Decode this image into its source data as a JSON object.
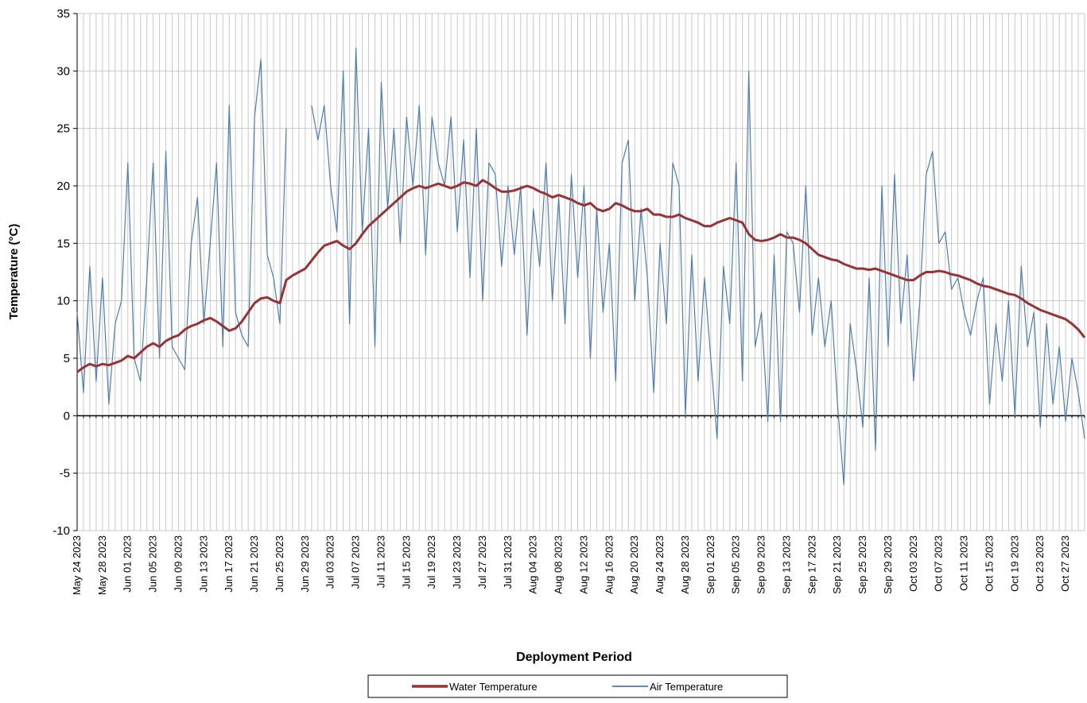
{
  "chart_data": {
    "type": "line",
    "y_label": "Temperature (°C)",
    "x_label": "Deployment Period",
    "categories": [
      "May 24 2023",
      null,
      null,
      null,
      "May 28 2023",
      null,
      null,
      null,
      "Jun 01 2023",
      null,
      null,
      null,
      "Jun 05 2023",
      null,
      null,
      null,
      "Jun 09 2023",
      null,
      null,
      null,
      "Jun 13 2023",
      null,
      null,
      null,
      "Jun 17 2023",
      null,
      null,
      null,
      "Jun 21 2023",
      null,
      null,
      null,
      "Jun 25 2023",
      null,
      null,
      null,
      "Jun 29 2023",
      null,
      null,
      null,
      "Jul 03 2023",
      null,
      null,
      null,
      "Jul 07 2023",
      null,
      null,
      null,
      "Jul 11 2023",
      null,
      null,
      null,
      "Jul 15 2023",
      null,
      null,
      null,
      "Jul 19 2023",
      null,
      null,
      null,
      "Jul 23 2023",
      null,
      null,
      null,
      "Jul 27 2023",
      null,
      null,
      null,
      "Jul 31 2023",
      null,
      null,
      null,
      "Aug 04 2023",
      null,
      null,
      null,
      "Aug 08 2023",
      null,
      null,
      null,
      "Aug 12 2023",
      null,
      null,
      null,
      "Aug 16 2023",
      null,
      null,
      null,
      "Aug 20 2023",
      null,
      null,
      null,
      "Aug 24 2023",
      null,
      null,
      null,
      "Aug 28 2023",
      null,
      null,
      null,
      "Sep 01 2023",
      null,
      null,
      null,
      "Sep 05 2023",
      null,
      null,
      null,
      "Sep 09 2023",
      null,
      null,
      null,
      "Sep 13 2023",
      null,
      null,
      null,
      "Sep 17 2023",
      null,
      null,
      null,
      "Sep 21 2023",
      null,
      null,
      null,
      "Sep 25 2023",
      null,
      null,
      null,
      "Sep 29 2023",
      null,
      null,
      null,
      "Oct 03 2023",
      null,
      null,
      null,
      "Oct 07 2023",
      null,
      null,
      null,
      "Oct 11 2023",
      null,
      null,
      null,
      "Oct 15 2023",
      null,
      null,
      null,
      "Oct 19 2023",
      null,
      null,
      null,
      "Oct 23 2023",
      null,
      null,
      null,
      "Oct 27 2023",
      null,
      null,
      null
    ],
    "series": [
      {
        "name": "Water Temperature",
        "color": "#993333",
        "width": 3,
        "values": [
          3.8,
          4.2,
          4.5,
          4.3,
          4.5,
          4.4,
          4.6,
          4.8,
          5.2,
          5.0,
          5.5,
          6.0,
          6.3,
          6.0,
          6.5,
          6.8,
          7.0,
          7.5,
          7.8,
          8.0,
          8.3,
          8.5,
          8.2,
          7.8,
          7.4,
          7.6,
          8.2,
          9.0,
          9.8,
          10.2,
          10.3,
          10.0,
          9.8,
          11.8,
          12.2,
          12.5,
          12.8,
          13.5,
          14.2,
          14.8,
          15.0,
          15.2,
          14.8,
          14.5,
          15.0,
          15.8,
          16.5,
          17.0,
          17.5,
          18.0,
          18.5,
          19.0,
          19.5,
          19.8,
          20.0,
          19.8,
          20.0,
          20.2,
          20.0,
          19.8,
          20.0,
          20.3,
          20.2,
          20.0,
          20.5,
          20.2,
          19.8,
          19.5,
          19.5,
          19.6,
          19.8,
          20.0,
          19.8,
          19.5,
          19.3,
          19.0,
          19.2,
          19.0,
          18.8,
          18.5,
          18.3,
          18.5,
          18.0,
          17.8,
          18.0,
          18.5,
          18.3,
          18.0,
          17.8,
          17.8,
          18.0,
          17.5,
          17.5,
          17.3,
          17.3,
          17.5,
          17.2,
          17.0,
          16.8,
          16.5,
          16.5,
          16.8,
          17.0,
          17.2,
          17.0,
          16.8,
          15.8,
          15.3,
          15.2,
          15.3,
          15.5,
          15.8,
          15.5,
          15.5,
          15.3,
          15.0,
          14.5,
          14.0,
          13.8,
          13.6,
          13.5,
          13.2,
          13.0,
          12.8,
          12.8,
          12.7,
          12.8,
          12.6,
          12.4,
          12.2,
          12.0,
          11.8,
          11.8,
          12.2,
          12.5,
          12.5,
          12.6,
          12.5,
          12.3,
          12.2,
          12.0,
          11.8,
          11.5,
          11.3,
          11.2,
          11.0,
          10.8,
          10.6,
          10.5,
          10.2,
          9.8,
          9.5,
          9.2,
          9.0,
          8.8,
          8.6,
          8.4,
          8.0,
          7.5,
          6.8
        ]
      },
      {
        "name": "Air Temperature",
        "color": "#4a7ebb",
        "width": 1.2,
        "values": [
          9,
          2,
          13,
          3,
          12,
          1,
          8,
          10,
          22,
          5,
          3,
          12,
          22,
          5,
          23,
          6,
          5,
          4,
          15,
          19,
          8,
          15,
          22,
          6,
          27,
          9,
          7,
          6,
          26,
          31,
          14,
          12,
          8,
          25,
          null,
          null,
          null,
          27,
          24,
          27,
          20,
          16,
          30,
          8,
          32,
          16,
          25,
          6,
          29,
          18,
          25,
          15,
          26,
          20,
          27,
          14,
          26,
          22,
          20,
          26,
          16,
          24,
          12,
          25,
          10,
          22,
          21,
          13,
          20,
          14,
          20,
          7,
          18,
          13,
          22,
          10,
          19,
          8,
          21,
          12,
          20,
          5,
          18,
          9,
          15,
          3,
          22,
          24,
          10,
          18,
          12,
          2,
          15,
          8,
          22,
          20,
          0,
          14,
          3,
          12,
          5,
          -2,
          13,
          8,
          22,
          3,
          30,
          6,
          9,
          -0.5,
          14,
          -0.5,
          16,
          15,
          9,
          20,
          7,
          12,
          6,
          10,
          1,
          -6,
          8,
          4,
          -1,
          12,
          -3,
          20,
          6,
          21,
          8,
          14,
          3,
          10,
          21,
          23,
          15,
          16,
          11,
          12,
          9,
          7,
          10,
          12,
          1,
          8,
          3,
          10,
          0,
          13,
          6,
          9,
          -1,
          8,
          1,
          6,
          -0.5,
          5,
          2,
          -2
        ]
      }
    ],
    "ylim": [
      -10,
      35
    ],
    "yticks": [
      -10,
      -5,
      0,
      5,
      10,
      15,
      20,
      25,
      30,
      35
    ],
    "grid": true,
    "zero_line": true
  }
}
